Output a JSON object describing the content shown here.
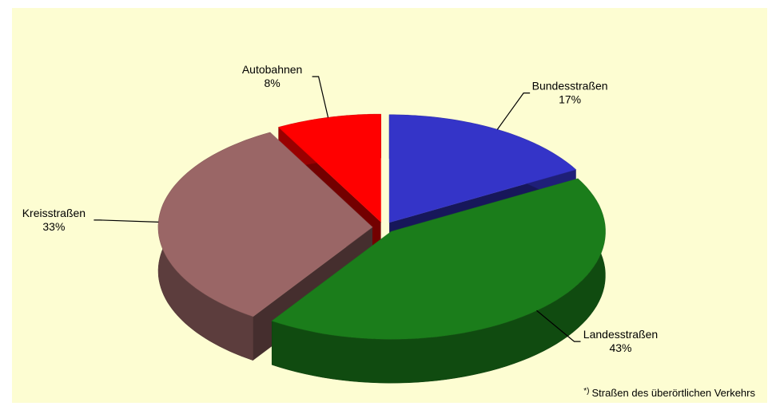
{
  "chart_data": {
    "type": "pie",
    "categories": [
      "Bundesstraßen",
      "Landesstraßen",
      "Kreisstraßen",
      "Autobahnen"
    ],
    "values": [
      17,
      43,
      33,
      8
    ],
    "value_labels": [
      "17%",
      "43%",
      "33%",
      "8%"
    ],
    "colors": [
      "#3434c8",
      "#1b7d1b",
      "#9a6666",
      "#ff0000"
    ],
    "footnote_marker": "*)",
    "footnote": "Straßen des überörtlichen Verkehrs"
  }
}
